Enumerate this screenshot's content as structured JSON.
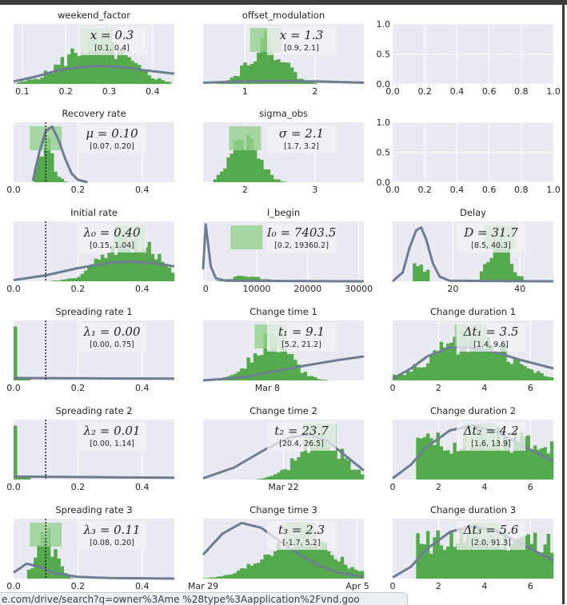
{
  "status_url": "e.com/drive/search?q=owner%3Ame %28type%3Aapplication%2Fvnd.goo",
  "colors": {
    "panel_bg": "#eaeaf2",
    "hist": "#55aa4e",
    "hist_light": "#95d190",
    "curve": "#6e7d91",
    "box": "#f1f1f5",
    "text": "#262626"
  },
  "chart_data": [
    {
      "id": "weekend",
      "title": "weekend_factor",
      "type": "histogram",
      "xlim": [
        0.08,
        0.45
      ],
      "xticks": [
        0.1,
        0.2,
        0.3,
        0.4
      ],
      "xticklabels": [
        "0.1",
        "0.2",
        "0.3",
        "0.4"
      ],
      "stat": "x = 0.3",
      "ci": "[0.1, 0.4]",
      "median": null,
      "hist": {
        "center": 0.27,
        "spread": 0.07,
        "range": [
          0.09,
          0.44
        ]
      },
      "prior": [
        [
          0.08,
          0.04
        ],
        [
          0.13,
          0.12
        ],
        [
          0.18,
          0.22
        ],
        [
          0.23,
          0.28
        ],
        [
          0.28,
          0.3
        ],
        [
          0.33,
          0.28
        ],
        [
          0.38,
          0.23
        ],
        [
          0.45,
          0.17
        ]
      ]
    },
    {
      "id": "offset",
      "title": "offset_modulation",
      "type": "histogram",
      "xlim": [
        0.4,
        2.7
      ],
      "xticks": [
        1,
        2
      ],
      "xticklabels": [
        "1",
        "2"
      ],
      "stat": "x = 1.3",
      "ci": "[0.9, 2.1]",
      "median": null,
      "hist": {
        "center": 1.3,
        "spread": 0.25,
        "range": [
          0.6,
          2.6
        ]
      },
      "prior": [
        [
          0.4,
          0.02
        ],
        [
          0.9,
          0.04
        ],
        [
          1.5,
          0.05
        ],
        [
          2.1,
          0.04
        ],
        [
          2.7,
          0.02
        ]
      ]
    },
    {
      "id": "empty1",
      "type": "empty",
      "xlim": [
        0,
        1
      ],
      "ylim": [
        0,
        1
      ],
      "xticks": [
        0,
        0.2,
        0.4,
        0.6,
        0.8,
        1.0
      ],
      "xticklabels": [
        "0.0",
        "0.2",
        "0.4",
        "0.6",
        "0.8",
        "1.0"
      ],
      "yticks": [
        0,
        0.5,
        1.0
      ],
      "yticklabels": [
        "0.0",
        "0.5",
        "1.0"
      ]
    },
    {
      "id": "recovery",
      "title": "Recovery rate",
      "type": "histogram",
      "xlim": [
        0,
        0.5
      ],
      "xticks": [
        0,
        0.2,
        0.4
      ],
      "xticklabels": [
        "0.0",
        "0.2",
        "0.4"
      ],
      "stat": "μ = 0.10",
      "ci": "[0.07, 0.20]",
      "median": 0.1,
      "hist": {
        "center": 0.1,
        "spread": 0.022,
        "range": [
          0.06,
          0.17
        ]
      },
      "prior": [
        [
          0.06,
          0.02
        ],
        [
          0.08,
          0.5
        ],
        [
          0.1,
          0.85
        ],
        [
          0.12,
          0.93
        ],
        [
          0.14,
          0.7
        ],
        [
          0.16,
          0.4
        ],
        [
          0.18,
          0.15
        ],
        [
          0.2,
          0.04
        ],
        [
          0.23,
          0.0
        ]
      ]
    },
    {
      "id": "sigma",
      "title": "sigma_obs",
      "type": "histogram",
      "xlim": [
        1.4,
        3.7
      ],
      "xticks": [
        2,
        3
      ],
      "xticklabels": [
        "2",
        "3"
      ],
      "stat": "σ = 2.1",
      "ci": "[1.7, 3.2]",
      "median": null,
      "hist": {
        "center": 2.0,
        "spread": 0.2,
        "range": [
          1.55,
          3.1
        ]
      },
      "prior": null
    },
    {
      "id": "empty2",
      "type": "empty",
      "xlim": [
        0,
        1
      ],
      "ylim": [
        0,
        1
      ],
      "xticks": [
        0,
        0.2,
        0.4,
        0.6,
        0.8,
        1.0
      ],
      "xticklabels": [
        "0.0",
        "0.2",
        "0.4",
        "0.6",
        "0.8",
        "1.0"
      ],
      "yticks": [
        0,
        0.5,
        1.0
      ],
      "yticklabels": [
        "0.0",
        "0.5",
        "1.0"
      ]
    },
    {
      "id": "initial",
      "title": "Initial rate",
      "type": "histogram",
      "xlim": [
        0,
        0.5
      ],
      "xticks": [
        0,
        0.2,
        0.4
      ],
      "xticklabels": [
        "0.0",
        "0.2",
        "0.4"
      ],
      "stat": "λ₀ = 0.40",
      "ci": "[0.15, 1.04]",
      "median": 0.1,
      "hist": {
        "center": 0.36,
        "spread": 0.08,
        "range": [
          0.06,
          0.5
        ]
      },
      "prior": [
        [
          0,
          0.02
        ],
        [
          0.1,
          0.1
        ],
        [
          0.2,
          0.22
        ],
        [
          0.3,
          0.31
        ],
        [
          0.36,
          0.33
        ],
        [
          0.44,
          0.3
        ],
        [
          0.5,
          0.25
        ]
      ]
    },
    {
      "id": "ibegin",
      "title": "I_begin",
      "type": "histogram",
      "xlim": [
        -500,
        31000
      ],
      "xticks": [
        0,
        10000,
        20000,
        30000
      ],
      "xticklabels": [
        "0",
        "10000",
        "20000",
        "30000"
      ],
      "stat": "I₀ = 7403.5",
      "ci": "[0.2, 19360.2]",
      "median": null,
      "hist": {
        "center": 8000,
        "spread": 3000,
        "range": [
          2000,
          16000
        ],
        "low": true
      },
      "prior": [
        [
          -500,
          0.2
        ],
        [
          0,
          0.95
        ],
        [
          500,
          0.6
        ],
        [
          1000,
          0.25
        ],
        [
          2000,
          0.05
        ],
        [
          4000,
          0.01
        ],
        [
          31000,
          0.0
        ]
      ]
    },
    {
      "id": "delay",
      "title": "Delay",
      "type": "histogram",
      "xlim": [
        2,
        50
      ],
      "xticks": [
        20,
        40
      ],
      "xticklabels": [
        "20",
        "40"
      ],
      "stat": "D = 31.7",
      "ci": "[8.5, 40.3]",
      "median": null,
      "hist": {
        "center": 34,
        "spread": 3,
        "range": [
          28,
          41
        ],
        "second": [
          8,
          13
        ]
      },
      "prior": [
        [
          2,
          0.0
        ],
        [
          5,
          0.15
        ],
        [
          7,
          0.55
        ],
        [
          9,
          0.85
        ],
        [
          10.5,
          0.9
        ],
        [
          12,
          0.7
        ],
        [
          14,
          0.3
        ],
        [
          16,
          0.08
        ],
        [
          19,
          0.01
        ],
        [
          50,
          0.0
        ]
      ]
    },
    {
      "id": "spread1",
      "title": "Spreading rate 1",
      "type": "histogram",
      "xlim": [
        0,
        0.5
      ],
      "xticks": [
        0,
        0.2,
        0.4
      ],
      "xticklabels": [
        "0.0",
        "0.2",
        "0.4"
      ],
      "stat": "λ₁ = 0.00",
      "ci": "[0.00, 0.75]",
      "median": 0.1,
      "hist": {
        "spike": 0.005
      },
      "prior": [
        [
          0,
          0.04
        ],
        [
          0.25,
          0.035
        ],
        [
          0.5,
          0.03
        ]
      ]
    },
    {
      "id": "ctime1",
      "title": "Change time 1",
      "type": "histogram",
      "xlim": [
        -12,
        38
      ],
      "xticks": [
        8
      ],
      "xticklabels": [
        "Mar 8"
      ],
      "stat": "t₁ = 9.1",
      "ci": "[5.2, 21.2]",
      "median": null,
      "hist": {
        "center": 9,
        "spread": 6,
        "range": [
          -12,
          38
        ]
      },
      "prior": [
        [
          -12,
          0.0
        ],
        [
          0,
          0.05
        ],
        [
          10,
          0.15
        ],
        [
          20,
          0.25
        ],
        [
          30,
          0.34
        ],
        [
          38,
          0.4
        ]
      ]
    },
    {
      "id": "cdur1",
      "title": "Change duration 1",
      "type": "histogram",
      "xlim": [
        0,
        7
      ],
      "xticks": [
        0,
        2,
        4,
        6
      ],
      "xticklabels": [
        "0",
        "2",
        "4",
        "6"
      ],
      "stat": "Δt₁ = 3.5",
      "ci": "[1.4, 9.6]",
      "median": null,
      "hist": {
        "center": 3.4,
        "spread": 1.6,
        "range": [
          0,
          7
        ]
      },
      "prior": [
        [
          0,
          0.03
        ],
        [
          0.8,
          0.2
        ],
        [
          1.5,
          0.4
        ],
        [
          2.5,
          0.55
        ],
        [
          3.5,
          0.55
        ],
        [
          4.5,
          0.47
        ],
        [
          5.5,
          0.35
        ],
        [
          7,
          0.2
        ]
      ]
    },
    {
      "id": "spread2",
      "title": "Spreading rate 2",
      "type": "histogram",
      "xlim": [
        0,
        0.5
      ],
      "xticks": [
        0,
        0.2,
        0.4
      ],
      "xticklabels": [
        "0.0",
        "0.2",
        "0.4"
      ],
      "stat": "λ₂ = 0.01",
      "ci": "[0.00, 1.14]",
      "median": 0.1,
      "hist": {
        "spike": 0.005
      },
      "prior": [
        [
          0,
          0.05
        ],
        [
          0.25,
          0.04
        ],
        [
          0.5,
          0.03
        ]
      ]
    },
    {
      "id": "ctime2",
      "title": "Change time 2",
      "type": "histogram",
      "xlim": [
        0,
        26
      ],
      "xticks": [
        13
      ],
      "xticklabels": [
        "Mar 22"
      ],
      "stat": "t₂ = 23.7",
      "ci": "[20.4, 26.5]",
      "median": null,
      "hist": {
        "center": 19,
        "spread": 3.5,
        "range": [
          2,
          26
        ]
      },
      "prior": [
        [
          0,
          0.02
        ],
        [
          5,
          0.2
        ],
        [
          10,
          0.5
        ],
        [
          14,
          0.7
        ],
        [
          17,
          0.75
        ],
        [
          20,
          0.65
        ],
        [
          23,
          0.4
        ],
        [
          26,
          0.15
        ]
      ]
    },
    {
      "id": "cdur2",
      "title": "Change duration 2",
      "type": "histogram",
      "xlim": [
        0,
        7
      ],
      "xticks": [
        0,
        2,
        4,
        6
      ],
      "xticklabels": [
        "0",
        "2",
        "4",
        "6"
      ],
      "stat": "Δt₂ = 4.2",
      "ci": "[1.6, 13.9]",
      "median": null,
      "hist": {
        "center": 3.8,
        "spread": 2.2,
        "range": [
          1,
          7
        ],
        "flat": true
      },
      "prior": [
        [
          0,
          0.02
        ],
        [
          0.8,
          0.25
        ],
        [
          1.5,
          0.55
        ],
        [
          2.5,
          0.82
        ],
        [
          3.5,
          0.9
        ],
        [
          4.5,
          0.8
        ],
        [
          5.5,
          0.6
        ],
        [
          7,
          0.3
        ]
      ]
    },
    {
      "id": "spread3",
      "title": "Spreading rate 3",
      "type": "histogram",
      "xlim": [
        0,
        0.5
      ],
      "xticks": [
        0,
        0.2,
        0.4
      ],
      "xticklabels": [
        "0.0",
        "0.2",
        "0.4"
      ],
      "stat": "λ₃ = 0.11",
      "ci": "[0.08, 0.20]",
      "median": 0.1,
      "hist": {
        "center": 0.1,
        "spread": 0.03,
        "range": [
          0.04,
          0.22
        ]
      },
      "prior": [
        [
          0,
          0.1
        ],
        [
          0.04,
          0.25
        ],
        [
          0.08,
          0.2
        ],
        [
          0.12,
          0.1
        ],
        [
          0.2,
          0.03
        ],
        [
          0.3,
          0.01
        ],
        [
          0.5,
          0.0
        ]
      ]
    },
    {
      "id": "ctime3",
      "title": "Change time 3",
      "type": "histogram",
      "xlim": [
        0,
        25
      ],
      "xticks": [
        0,
        24
      ],
      "xticklabels": [
        "Mar 29",
        "Apr 5"
      ],
      "stat": "t₃ = 2.3",
      "ci": "[-1.7, 5.2]",
      "median": null,
      "hist": {
        "center": 15,
        "spread": 5,
        "range": [
          0,
          25
        ]
      },
      "prior": [
        [
          0,
          0.4
        ],
        [
          3,
          0.75
        ],
        [
          6,
          0.93
        ],
        [
          9,
          0.85
        ],
        [
          12,
          0.62
        ],
        [
          15,
          0.4
        ],
        [
          18,
          0.22
        ],
        [
          21,
          0.1
        ],
        [
          25,
          0.03
        ]
      ]
    },
    {
      "id": "cdur3",
      "title": "Change duration 3",
      "type": "histogram",
      "xlim": [
        0,
        7
      ],
      "xticks": [
        0,
        2,
        4,
        6
      ],
      "xticklabels": [
        "0",
        "2",
        "4",
        "6"
      ],
      "stat": "Δt₃ = 5.6",
      "ci": "[2.0, 91.3]",
      "median": null,
      "hist": {
        "center": 4,
        "spread": 3,
        "range": [
          1,
          7
        ],
        "flat": true
      },
      "prior": [
        [
          0,
          0.02
        ],
        [
          0.8,
          0.2
        ],
        [
          1.5,
          0.5
        ],
        [
          2.5,
          0.78
        ],
        [
          3.5,
          0.88
        ],
        [
          4.5,
          0.8
        ],
        [
          5.5,
          0.6
        ],
        [
          7,
          0.3
        ]
      ]
    }
  ]
}
